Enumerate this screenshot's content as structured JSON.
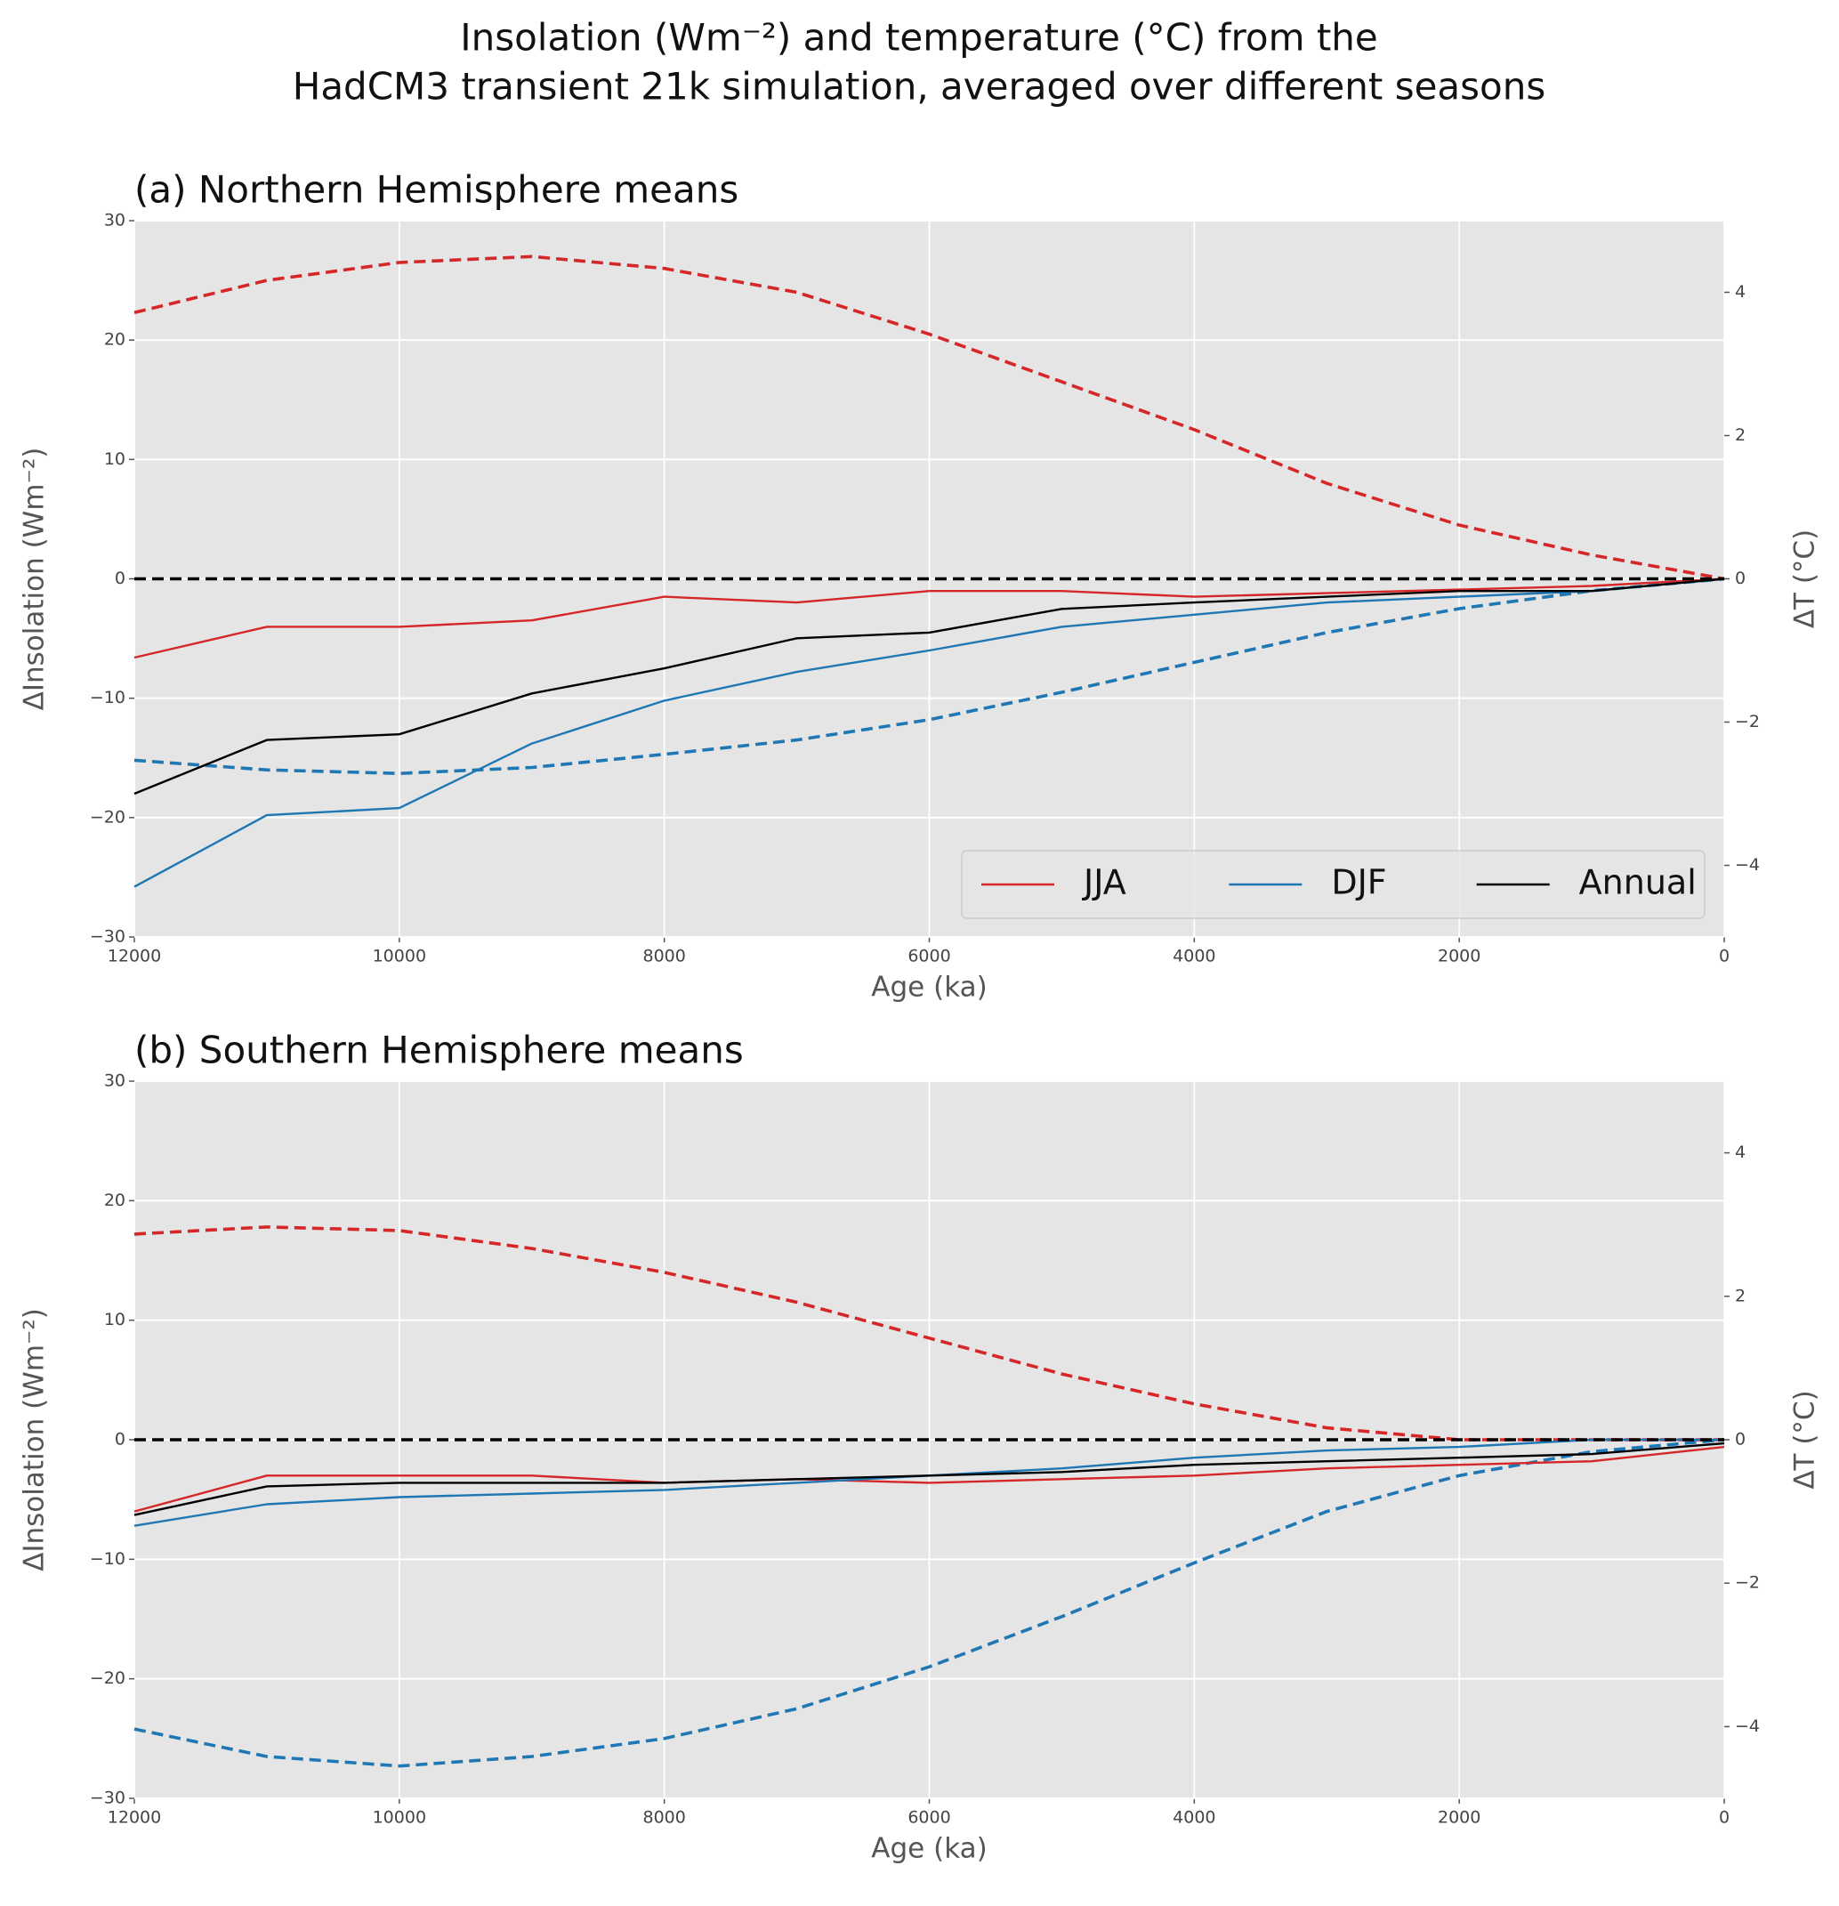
{
  "title": [
    "Insolation (Wm⁻²) and temperature (°C) from the",
    "HadCM3 transient 21k simulation, averaged over different seasons"
  ],
  "chart_data": [
    {
      "type": "line",
      "title": "(a) Northern Hemisphere means",
      "x_label": "Age (ka)",
      "y_label": "ΔInsolation (Wm⁻²)",
      "y2_label": "ΔT (°C)",
      "x": [
        12000,
        11000,
        10000,
        9000,
        8000,
        7000,
        6000,
        5000,
        4000,
        3000,
        2000,
        1000,
        0
      ],
      "xlim": [
        12000,
        0
      ],
      "xticks": [
        12000,
        10000,
        8000,
        6000,
        4000,
        2000,
        0
      ],
      "ylim": [
        -30,
        30
      ],
      "yticks": [
        {
          "value": -30,
          "label": "−30"
        },
        {
          "value": -20,
          "label": "−20"
        },
        {
          "value": -10,
          "label": "−10"
        },
        0,
        10,
        20,
        30
      ],
      "y2lim": [
        -5,
        5
      ],
      "y2ticks": [
        {
          "value": -4,
          "label": "−4"
        },
        {
          "value": -2,
          "label": "−2"
        },
        0,
        2,
        4
      ],
      "hline": 0,
      "grid": true,
      "legend": "lower right",
      "series": [
        {
          "color": "#d62728",
          "dashed": true,
          "values": [
            22.3,
            25,
            26.5,
            27,
            26,
            24,
            20.5,
            16.5,
            12.5,
            8,
            4.5,
            2,
            0
          ]
        },
        {
          "color": "#1f77b4",
          "dashed": true,
          "values": [
            -15.2,
            -16,
            -16.3,
            -15.8,
            -14.7,
            -13.5,
            -11.8,
            -9.5,
            -7,
            -4.5,
            -2.5,
            -1,
            0
          ]
        },
        {
          "name": "JJA",
          "color": "#d62728",
          "axis": "y2",
          "values": [
            -1.1,
            -0.67,
            -0.67,
            -0.58,
            -0.25,
            -0.33,
            -0.17,
            -0.17,
            -0.25,
            -0.2,
            -0.15,
            -0.1,
            0
          ]
        },
        {
          "name": "DJF",
          "color": "#1f77b4",
          "axis": "y2",
          "values": [
            -4.3,
            -3.3,
            -3.2,
            -2.3,
            -1.7,
            -1.3,
            -1.0,
            -0.67,
            -0.5,
            -0.33,
            -0.25,
            -0.17,
            0
          ]
        },
        {
          "name": "Annual",
          "color": "#000000",
          "axis": "y2",
          "values": [
            -3.0,
            -2.25,
            -2.17,
            -1.6,
            -1.25,
            -0.83,
            -0.75,
            -0.42,
            -0.33,
            -0.25,
            -0.17,
            -0.17,
            0
          ]
        }
      ]
    },
    {
      "type": "line",
      "title": "(b) Southern Hemisphere means",
      "x_label": "Age (ka)",
      "y_label": "ΔInsolation (Wm⁻²)",
      "y2_label": "ΔT (°C)",
      "x": [
        12000,
        11000,
        10000,
        9000,
        8000,
        7000,
        6000,
        5000,
        4000,
        3000,
        2000,
        1000,
        0
      ],
      "xlim": [
        12000,
        0
      ],
      "xticks": [
        12000,
        10000,
        8000,
        6000,
        4000,
        2000,
        0
      ],
      "ylim": [
        -30,
        30
      ],
      "yticks": [
        {
          "value": -30,
          "label": "−30"
        },
        {
          "value": -20,
          "label": "−20"
        },
        {
          "value": -10,
          "label": "−10"
        },
        0,
        10,
        20,
        30
      ],
      "y2lim": [
        -5,
        5
      ],
      "y2ticks": [
        {
          "value": -4,
          "label": "−4"
        },
        {
          "value": -2,
          "label": "−2"
        },
        0,
        2,
        4
      ],
      "hline": 0,
      "grid": true,
      "series": [
        {
          "color": "#d62728",
          "dashed": true,
          "values": [
            17.2,
            17.8,
            17.5,
            16,
            14,
            11.5,
            8.5,
            5.5,
            3,
            1,
            0,
            0,
            0
          ]
        },
        {
          "color": "#1f77b4",
          "dashed": true,
          "values": [
            -24.2,
            -26.5,
            -27.3,
            -26.5,
            -25,
            -22.5,
            -19,
            -14.8,
            -10.3,
            -6,
            -3,
            -1,
            0
          ]
        },
        {
          "color": "#d62728",
          "axis": "y2",
          "values": [
            -1.0,
            -0.5,
            -0.5,
            -0.5,
            -0.6,
            -0.55,
            -0.6,
            -0.55,
            -0.5,
            -0.4,
            -0.35,
            -0.3,
            -0.1
          ]
        },
        {
          "color": "#1f77b4",
          "axis": "y2",
          "values": [
            -1.2,
            -0.9,
            -0.8,
            -0.75,
            -0.7,
            -0.6,
            -0.5,
            -0.4,
            -0.25,
            -0.15,
            -0.1,
            0,
            0
          ]
        },
        {
          "color": "#000000",
          "axis": "y2",
          "values": [
            -1.05,
            -0.65,
            -0.6,
            -0.6,
            -0.6,
            -0.55,
            -0.5,
            -0.45,
            -0.35,
            -0.3,
            -0.25,
            -0.2,
            -0.05
          ]
        }
      ]
    }
  ]
}
